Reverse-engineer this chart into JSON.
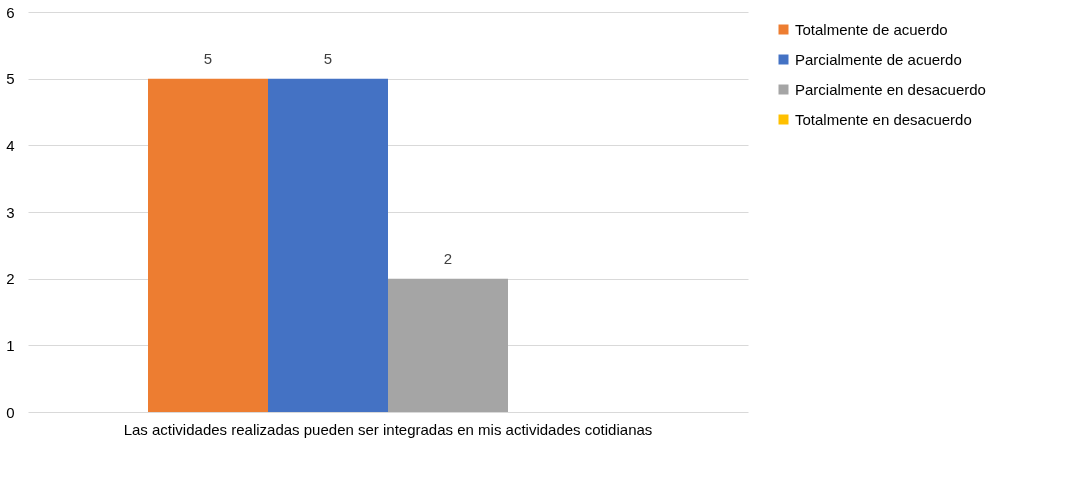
{
  "chart_data": {
    "type": "bar",
    "categories": [
      "Las actividades realizadas pueden ser integradas en mis actividades cotidianas"
    ],
    "series": [
      {
        "name": "Totalmente de acuerdo",
        "color": "#ed7d31",
        "values": [
          5
        ],
        "value_labels": [
          "5"
        ]
      },
      {
        "name": "Parcialmente de acuerdo",
        "color": "#4472c4",
        "values": [
          5
        ],
        "value_labels": [
          "5"
        ]
      },
      {
        "name": "Parcialmente en desacuerdo",
        "color": "#a5a5a5",
        "values": [
          2
        ],
        "value_labels": [
          "2"
        ]
      },
      {
        "name": "Totalmente en desacuerdo",
        "color": "#ffc000",
        "values": [
          0
        ],
        "value_labels": [
          null
        ]
      }
    ],
    "ylim": [
      0,
      6
    ],
    "yticks": [
      0,
      1,
      2,
      3,
      4,
      5,
      6
    ],
    "grid": "y",
    "legend": "right"
  }
}
